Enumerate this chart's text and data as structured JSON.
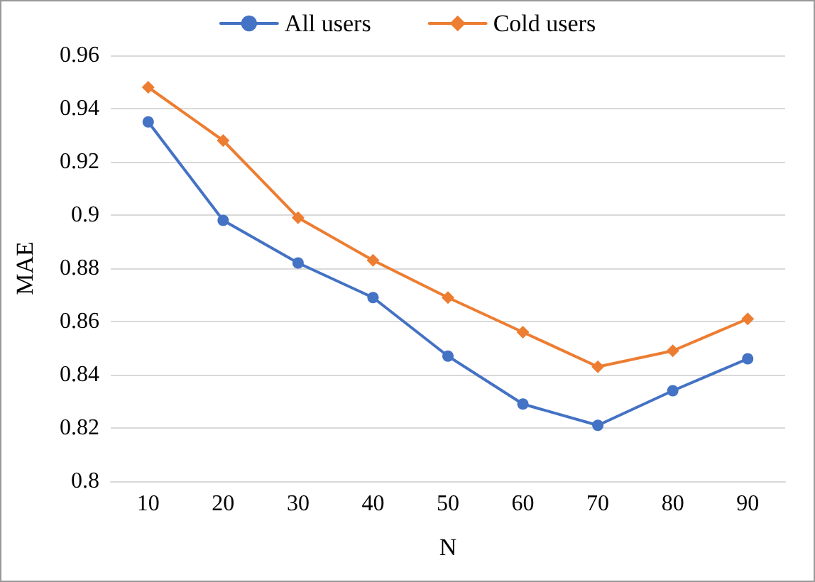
{
  "chart_data": {
    "type": "line",
    "xlabel": "N",
    "ylabel": "MAE",
    "categories": [
      "10",
      "20",
      "30",
      "40",
      "50",
      "60",
      "70",
      "80",
      "90"
    ],
    "series": [
      {
        "name": "All users",
        "color": "#4472c4",
        "marker": "circle",
        "values": [
          0.935,
          0.898,
          0.882,
          0.869,
          0.847,
          0.829,
          0.821,
          0.834,
          0.846
        ]
      },
      {
        "name": "Cold users",
        "color": "#ed7d31",
        "marker": "diamond",
        "values": [
          0.948,
          0.928,
          0.899,
          0.883,
          0.869,
          0.856,
          0.843,
          0.849,
          0.861
        ]
      }
    ],
    "ylim": [
      0.8,
      0.96
    ],
    "yticks": [
      0.8,
      0.82,
      0.84,
      0.86,
      0.88,
      0.9,
      0.92,
      0.94,
      0.96
    ],
    "grid": "y",
    "legend": "top",
    "line_style": "solid"
  }
}
